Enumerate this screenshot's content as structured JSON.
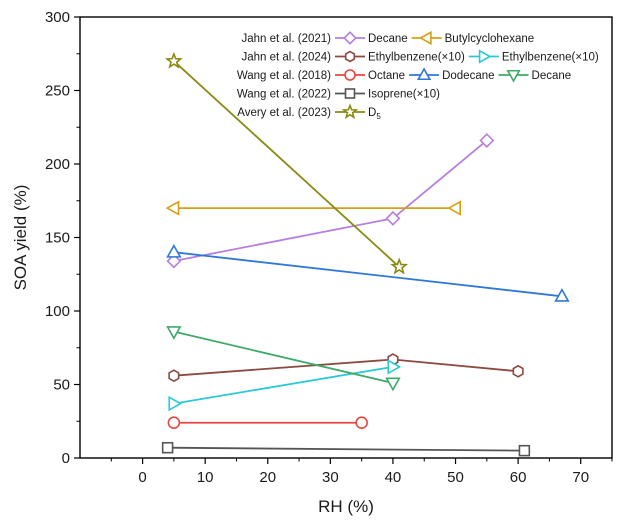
{
  "chart_data": {
    "type": "line",
    "xlabel": "RH (%)",
    "ylabel": "SOA yield (%)",
    "xlim": [
      -10,
      75
    ],
    "ylim": [
      0,
      300
    ],
    "xticks": [
      "0",
      "10",
      "20",
      "30",
      "40",
      "50",
      "60",
      "70"
    ],
    "yticks": [
      "0",
      "50",
      "100",
      "150",
      "200",
      "250",
      "300"
    ],
    "grid": false,
    "legend_position": "top-right",
    "legend": [
      {
        "label": "Jahn et al. (2021)",
        "series": [
          0,
          1
        ]
      },
      {
        "label": "Jahn et al. (2024)",
        "series": [
          2,
          3
        ]
      },
      {
        "label": "Wang et al. (2018)",
        "series": [
          4,
          5,
          6
        ]
      },
      {
        "label": "Wang et al. (2022)",
        "series": [
          7
        ]
      },
      {
        "label": "Avery et al. (2023)",
        "series": [
          8
        ]
      }
    ],
    "series": [
      {
        "name": "Decane",
        "color": "#b77ee0",
        "marker": "diamond",
        "points": [
          [
            5,
            134
          ],
          [
            40,
            163
          ],
          [
            55,
            216
          ]
        ]
      },
      {
        "name": "Butylcyclohexane",
        "color": "#d4a017",
        "marker": "triangle-left",
        "points": [
          [
            5,
            170
          ],
          [
            50,
            170
          ]
        ]
      },
      {
        "name": "Ethylbenzene(×10)",
        "color": "#8b4a42",
        "marker": "hexagon",
        "points": [
          [
            5,
            56
          ],
          [
            40,
            67
          ],
          [
            60,
            59
          ]
        ]
      },
      {
        "name": "Ethylbenzene(×10)",
        "color": "#2ac9d6",
        "marker": "triangle-right",
        "points": [
          [
            5,
            37
          ],
          [
            40,
            62
          ]
        ]
      },
      {
        "name": "Octane",
        "color": "#e8473f",
        "marker": "circle",
        "points": [
          [
            5,
            24
          ],
          [
            35,
            24
          ]
        ]
      },
      {
        "name": "Dodecane",
        "color": "#2f78d8",
        "marker": "triangle-up",
        "points": [
          [
            5,
            140
          ],
          [
            67,
            110
          ]
        ]
      },
      {
        "name": "Decane",
        "color": "#3fa96a",
        "marker": "triangle-down",
        "points": [
          [
            5,
            86
          ],
          [
            40,
            51
          ]
        ]
      },
      {
        "name": "Isoprene(×10)",
        "color": "#555555",
        "marker": "square",
        "points": [
          [
            4,
            7
          ],
          [
            61,
            5
          ]
        ]
      },
      {
        "name": "D5",
        "color": "#8a8a12",
        "marker": "star",
        "points": [
          [
            5,
            270
          ],
          [
            41,
            130
          ]
        ]
      }
    ]
  }
}
